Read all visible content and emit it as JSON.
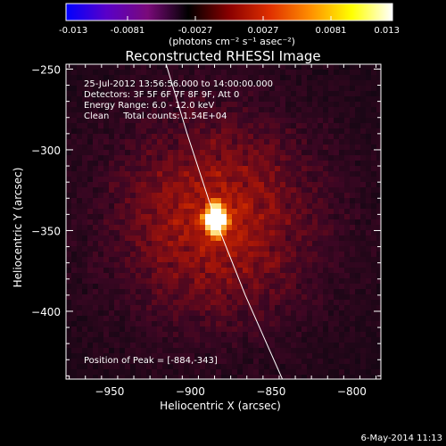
{
  "colorbar": {
    "tick_labels": [
      "-0.013",
      "-0.0081",
      "-0.0027",
      "0.0027",
      "0.0081",
      "0.013"
    ],
    "tick_values": [
      -0.013,
      -0.0081,
      -0.0027,
      0.0027,
      0.0081,
      0.013
    ],
    "range": [
      -0.013,
      0.013
    ],
    "units_label": "(photons cm⁻² s⁻¹ asec⁻²)",
    "colors": [
      "#0000ff",
      "#5a00c8",
      "#7a0a7a",
      "#000000",
      "#8a0000",
      "#e03000",
      "#ff9000",
      "#ffff00",
      "#ffffff"
    ]
  },
  "chart_data": {
    "type": "heatmap",
    "title": "Reconstructed RHESSI Image",
    "xlabel": "Heliocentric X (arcsec)",
    "ylabel": "Heliocentric Y (arcsec)",
    "xlim": [
      -977,
      -782
    ],
    "ylim": [
      -442,
      -247
    ],
    "x_ticks": [
      -950,
      -900,
      -850,
      -800
    ],
    "x_tick_labels": [
      "−950",
      "−900",
      "−850",
      "−800"
    ],
    "y_ticks": [
      -400,
      -350,
      -300,
      -250
    ],
    "y_tick_labels": [
      "−400",
      "−350",
      "−300",
      "−250"
    ],
    "peak": {
      "x": -884,
      "y": -343
    },
    "source_sigma_x": 5,
    "source_sigma_y": 6.5,
    "limb_points": [
      [
        -915,
        -247
      ],
      [
        -902,
        -290
      ],
      [
        -885,
        -342
      ],
      [
        -866,
        -390
      ],
      [
        -843,
        -442
      ]
    ],
    "info_lines": [
      "25-Jul-2012 13:56:56.000 to 14:00:00.000",
      "Detectors: 3F 5F 6F 7F 8F 9F, Att 0",
      "Energy Range: 6.0 - 12.0 keV",
      "Clean     Total counts: 1.54E+04"
    ],
    "peak_label": "Position of Peak = [-884,-343]"
  },
  "footer": {
    "date": "6-May-2014 11:13"
  }
}
